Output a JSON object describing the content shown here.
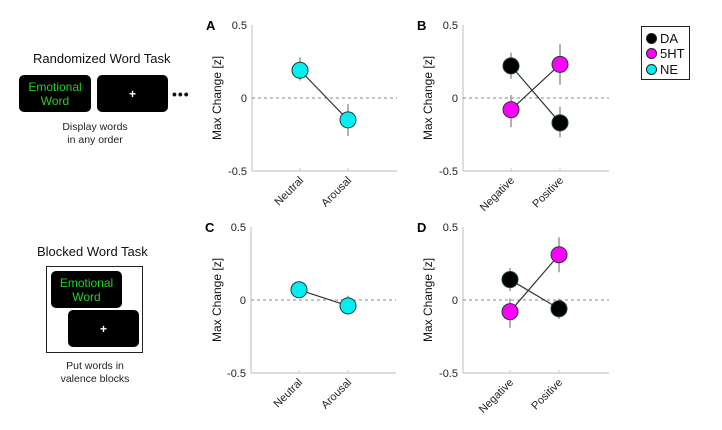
{
  "left_panels": {
    "randomized": {
      "title": "Randomized Word Task",
      "word_screen": [
        "Emotional",
        "Word"
      ],
      "fixation": "+",
      "ellipsis": "•••",
      "description": [
        "Display words",
        "in any order"
      ]
    },
    "blocked": {
      "title": "Blocked Word Task",
      "word_screen": [
        "Emotional",
        "Word"
      ],
      "fixation": "+",
      "description": [
        "Put words in",
        "valence blocks"
      ]
    }
  },
  "legend": {
    "items": [
      {
        "label": "DA",
        "color": "#000000"
      },
      {
        "label": "5HT",
        "color": "#ff00ff"
      },
      {
        "label": "NE",
        "color": "#00f0f0"
      }
    ]
  },
  "chart_data": [
    {
      "panel": "A",
      "type": "line",
      "ylabel": "Max Change [z]",
      "ylim": [
        -0.5,
        0.5
      ],
      "yticks": [
        "0.5",
        "0",
        "-0.5"
      ],
      "categories": [
        "Neutral",
        "Arousal"
      ],
      "zero_line": "dashed",
      "series": [
        {
          "name": "NE",
          "color": "#00f0f0",
          "values": [
            0.19,
            -0.15
          ],
          "err_low": [
            0.12,
            -0.26
          ],
          "err_high": [
            0.28,
            -0.04
          ]
        }
      ]
    },
    {
      "panel": "B",
      "type": "line",
      "ylabel": "Max Change [z]",
      "ylim": [
        -0.5,
        0.5
      ],
      "yticks": [
        "0.5",
        "0",
        "-0.5"
      ],
      "categories": [
        "Negative",
        "Positive"
      ],
      "zero_line": "dashed",
      "series": [
        {
          "name": "DA",
          "color": "#000000",
          "values": [
            0.22,
            -0.17
          ],
          "err_low": [
            0.13,
            -0.27
          ],
          "err_high": [
            0.31,
            -0.06
          ]
        },
        {
          "name": "5HT",
          "color": "#ff00ff",
          "values": [
            -0.08,
            0.23
          ],
          "err_low": [
            -0.2,
            0.09
          ],
          "err_high": [
            0.02,
            0.37
          ]
        }
      ]
    },
    {
      "panel": "C",
      "type": "line",
      "ylabel": "Max Change [z]",
      "ylim": [
        -0.5,
        0.5
      ],
      "yticks": [
        "0.5",
        "0",
        "-0.5"
      ],
      "categories": [
        "Neutral",
        "Arousal"
      ],
      "zero_line": "dashed",
      "series": [
        {
          "name": "NE",
          "color": "#00f0f0",
          "values": [
            0.07,
            -0.04
          ],
          "err_low": [
            0.03,
            -0.1
          ],
          "err_high": [
            0.11,
            0.03
          ]
        }
      ]
    },
    {
      "panel": "D",
      "type": "line",
      "ylabel": "Max Change [z]",
      "ylim": [
        -0.5,
        0.5
      ],
      "yticks": [
        "0.5",
        "0",
        "-0.5"
      ],
      "categories": [
        "Negative",
        "Positive"
      ],
      "zero_line": "dashed",
      "series": [
        {
          "name": "DA",
          "color": "#000000",
          "values": [
            0.14,
            -0.06
          ],
          "err_low": [
            0.06,
            -0.13
          ],
          "err_high": [
            0.22,
            0.01
          ]
        },
        {
          "name": "5HT",
          "color": "#ff00ff",
          "values": [
            -0.08,
            0.31
          ],
          "err_low": [
            -0.19,
            0.19
          ],
          "err_high": [
            0.01,
            0.43
          ]
        }
      ]
    }
  ]
}
